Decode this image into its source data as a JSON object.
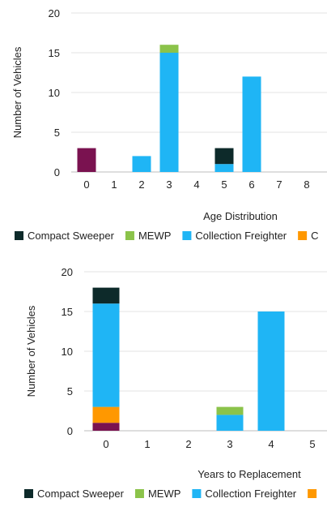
{
  "chart_data": [
    {
      "type": "bar",
      "stacked": true,
      "xlabel": "Age Distribution",
      "ylabel": "Number of Vehicles",
      "ylim": [
        0,
        20
      ],
      "yticks": [
        0,
        5,
        10,
        15,
        20
      ],
      "grid": true,
      "legend_position": "bottom",
      "categories": [
        "0",
        "1",
        "2",
        "3",
        "4",
        "5",
        "6",
        "7",
        "8"
      ],
      "series": [
        {
          "name": "",
          "color": "#7a1250",
          "values": [
            3,
            0,
            0,
            0,
            0,
            0,
            0,
            0,
            0
          ]
        },
        {
          "name": "C",
          "color": "#ff9800",
          "values": [
            0,
            0,
            0,
            0,
            0,
            0,
            0,
            0,
            0
          ]
        },
        {
          "name": "Collection Freighter",
          "color": "#1fb5f5",
          "values": [
            0,
            0,
            2,
            15,
            0,
            1,
            12,
            0,
            0
          ]
        },
        {
          "name": "MEWP",
          "color": "#8bc34a",
          "values": [
            0,
            0,
            0,
            1,
            0,
            0,
            0,
            0,
            0
          ]
        },
        {
          "name": "Compact Sweeper",
          "color": "#0d2a2a",
          "values": [
            0,
            0,
            0,
            0,
            0,
            2,
            0,
            0,
            0
          ]
        }
      ],
      "legend": [
        {
          "name": "Compact Sweeper",
          "color": "#0d2a2a"
        },
        {
          "name": "MEWP",
          "color": "#8bc34a"
        },
        {
          "name": "Collection Freighter",
          "color": "#1fb5f5"
        },
        {
          "name": "C",
          "color": "#ff9800"
        }
      ]
    },
    {
      "type": "bar",
      "stacked": true,
      "xlabel": "Years to Replacement",
      "ylabel": "Number of Vehicles",
      "ylim": [
        0,
        20
      ],
      "yticks": [
        0,
        5,
        10,
        15,
        20
      ],
      "grid": true,
      "legend_position": "bottom",
      "categories": [
        "0",
        "1",
        "2",
        "3",
        "4",
        "5"
      ],
      "series": [
        {
          "name": "",
          "color": "#7a1250",
          "values": [
            1,
            0,
            0,
            0,
            0,
            0
          ]
        },
        {
          "name": "",
          "color": "#ff9800",
          "values": [
            2,
            0,
            0,
            0,
            0,
            0
          ]
        },
        {
          "name": "Collection Freighter",
          "color": "#1fb5f5",
          "values": [
            13,
            0,
            0,
            2,
            15,
            0
          ]
        },
        {
          "name": "MEWP",
          "color": "#8bc34a",
          "values": [
            0,
            0,
            0,
            1,
            0,
            0
          ]
        },
        {
          "name": "Compact Sweeper",
          "color": "#0d2a2a",
          "values": [
            2,
            0,
            0,
            0,
            0,
            0
          ]
        }
      ],
      "legend": [
        {
          "name": "Compact Sweeper",
          "color": "#0d2a2a"
        },
        {
          "name": "MEWP",
          "color": "#8bc34a"
        },
        {
          "name": "Collection Freighter",
          "color": "#1fb5f5"
        },
        {
          "name": "",
          "color": "#ff9800"
        }
      ]
    }
  ]
}
